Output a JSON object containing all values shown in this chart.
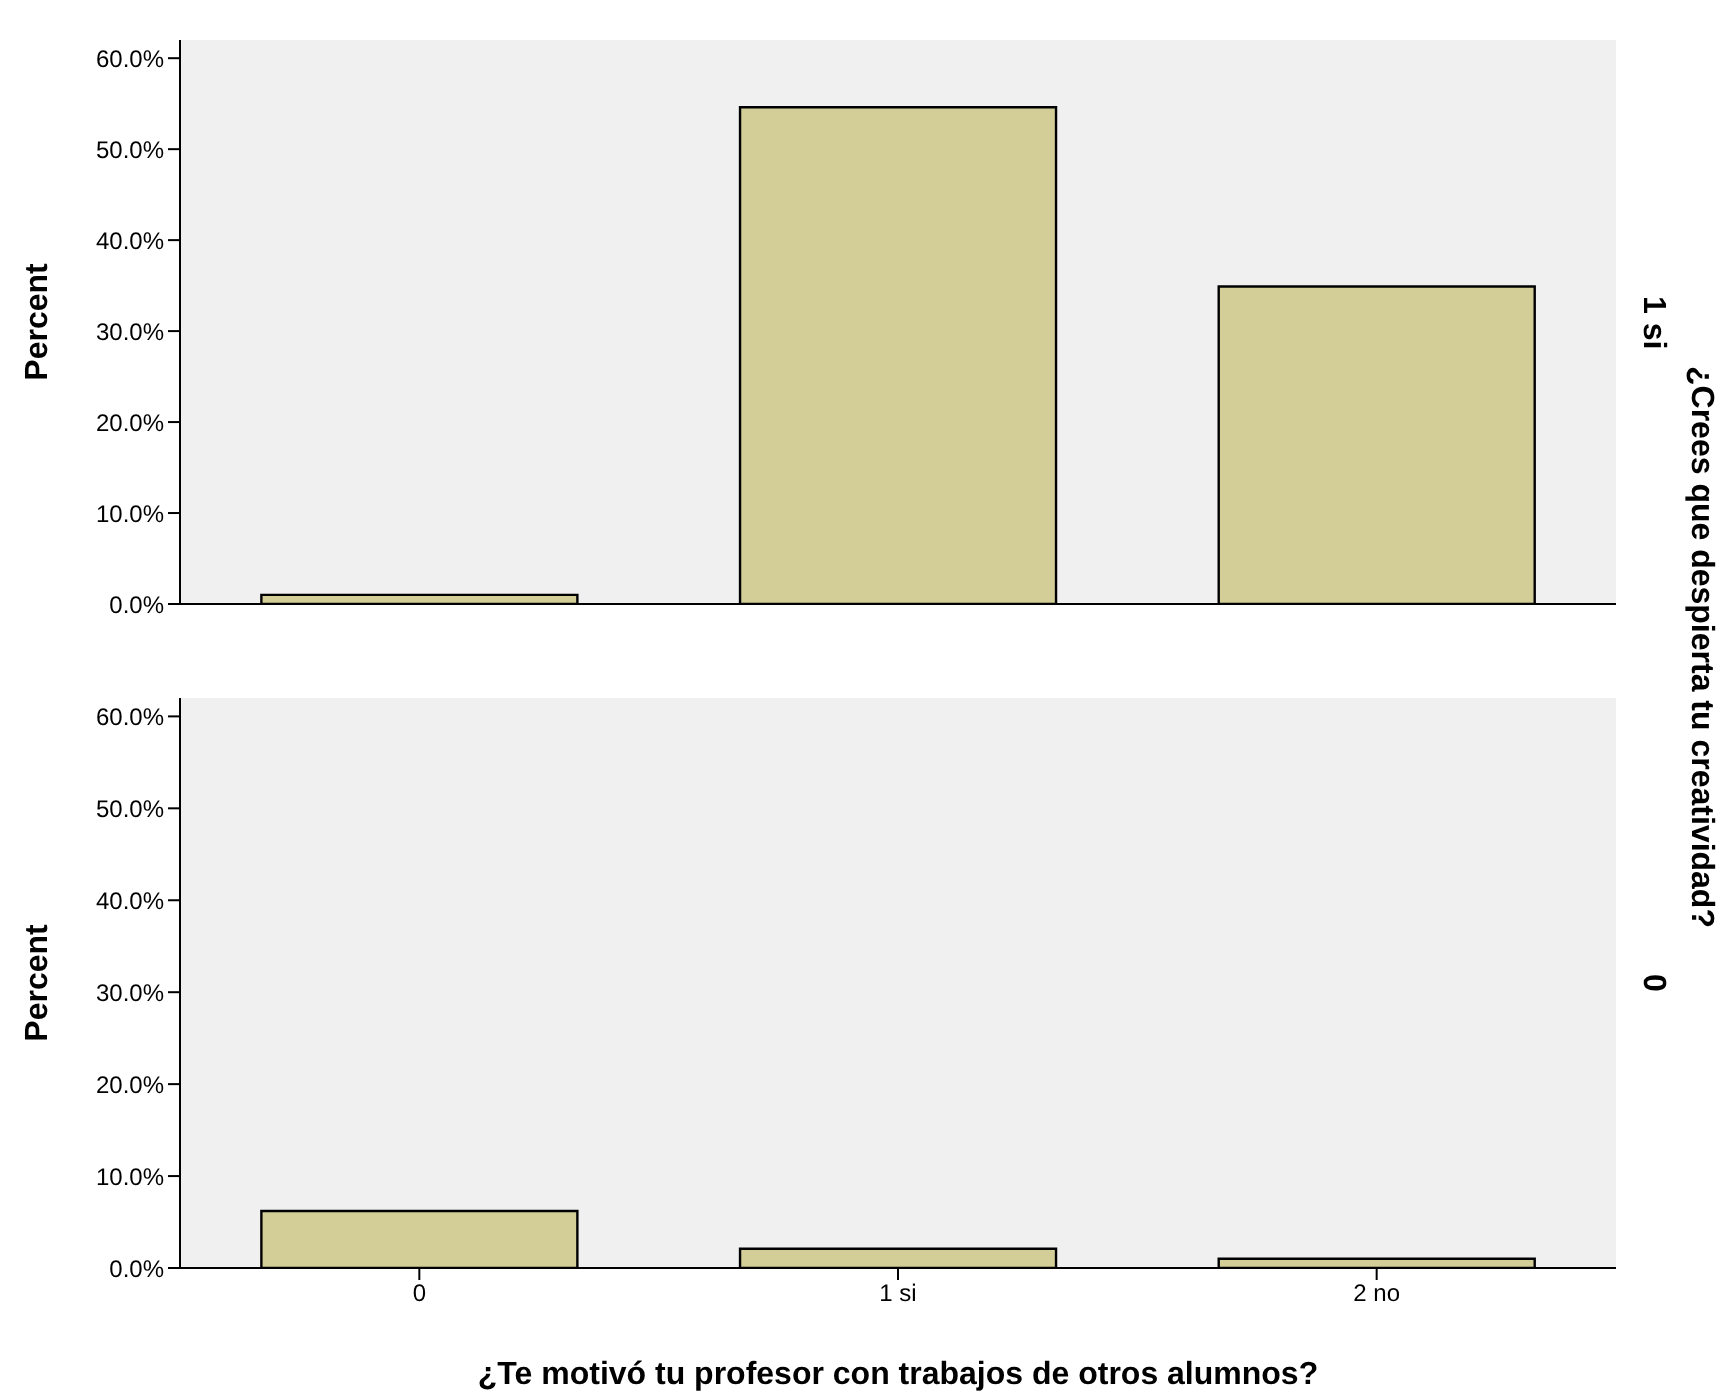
{
  "chart_data": [
    {
      "type": "bar",
      "categories": [
        null,
        null,
        null
      ],
      "values": [
        1.0,
        54.6,
        34.9
      ],
      "color": "#d3ce97",
      "ylabel": "Percent",
      "y2label": "1 si",
      "annotations": [
        "¿Crees que despierta tu creatividad?"
      ],
      "ylim": [
        0,
        62
      ],
      "yticks": [
        {
          "value": 0,
          "label": "0.0%"
        },
        {
          "value": 10,
          "label": "10.0%"
        },
        {
          "value": 20,
          "label": "20.0%"
        },
        {
          "value": 30,
          "label": "30.0%"
        },
        {
          "value": 40,
          "label": "40.0%"
        },
        {
          "value": 50,
          "label": "50.0%"
        },
        {
          "value": 60,
          "label": "60.0%"
        }
      ],
      "tick_labels": "y"
    },
    {
      "type": "bar",
      "categories": [
        "0",
        "1 si",
        "2 no"
      ],
      "values": [
        6.2,
        2.1,
        1.0
      ],
      "color": "#d3ce97",
      "ylabel": "Percent",
      "y2label": "0",
      "xlabel": "¿Te motivó tu profesor con trabajos de otros alumnos?",
      "ylim": [
        0,
        62
      ],
      "yticks": [
        {
          "value": 0,
          "label": "0.0%"
        },
        {
          "value": 10,
          "label": "10.0%"
        },
        {
          "value": 20,
          "label": "20.0%"
        },
        {
          "value": 30,
          "label": "30.0%"
        },
        {
          "value": 40,
          "label": "40.0%"
        },
        {
          "value": 50,
          "label": "50.0%"
        },
        {
          "value": 60,
          "label": "60.0%"
        }
      ]
    }
  ]
}
